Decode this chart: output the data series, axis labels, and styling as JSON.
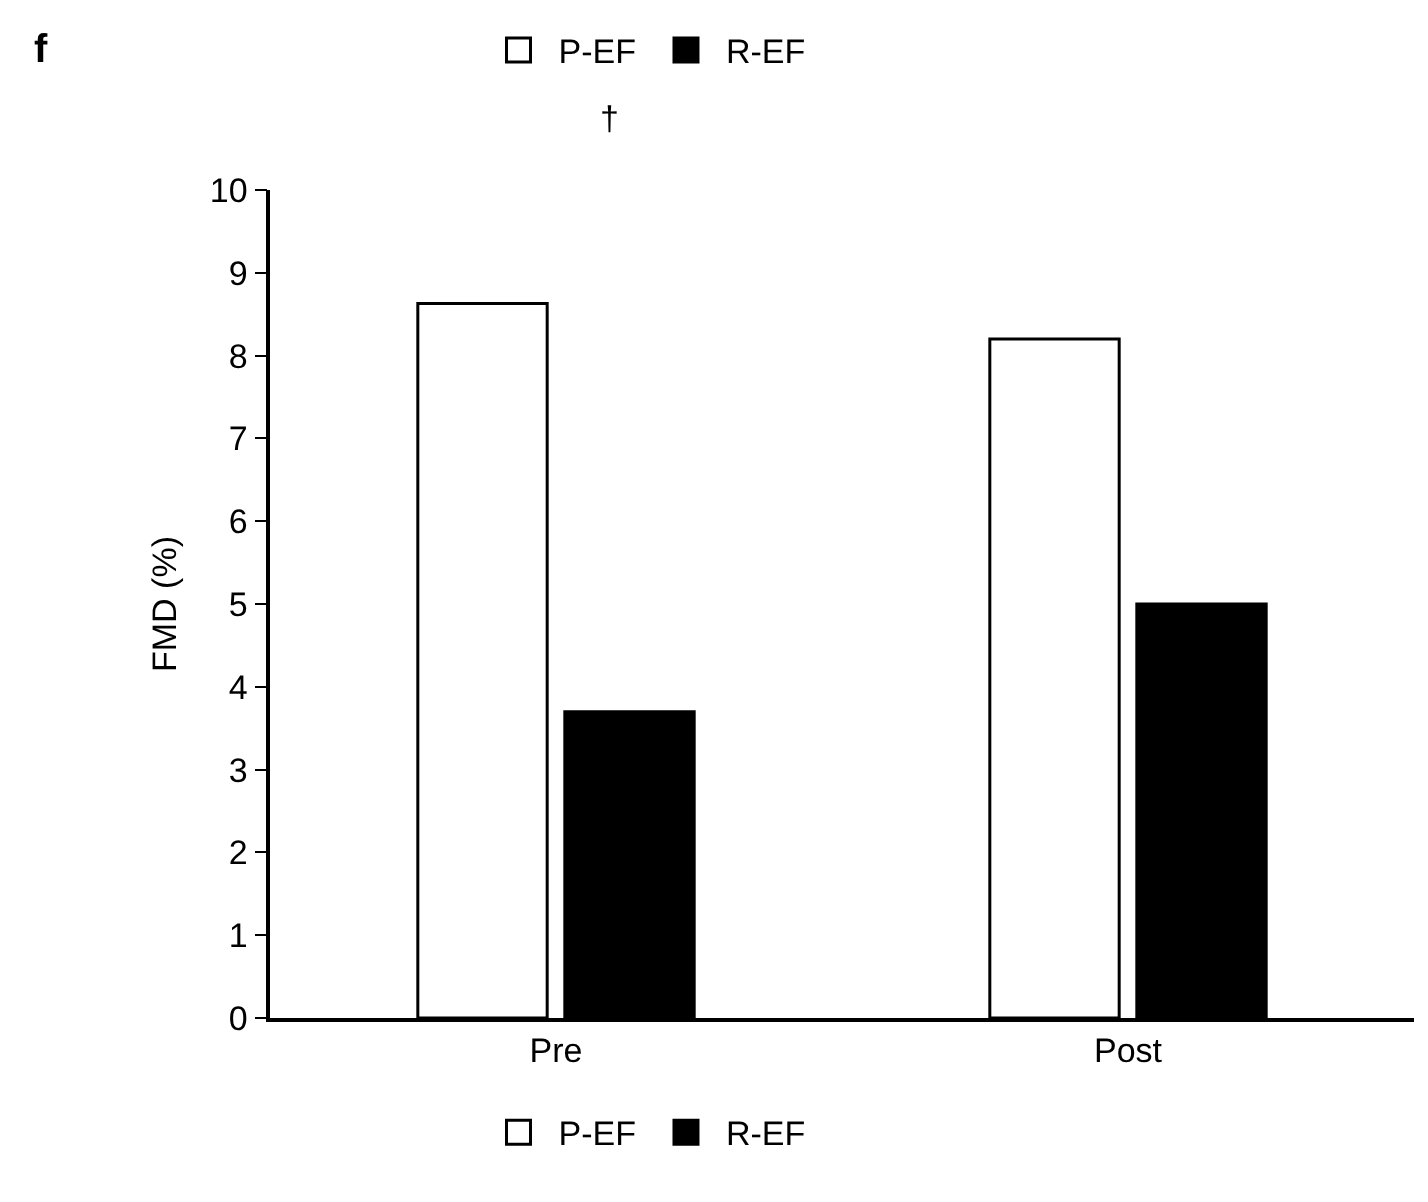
{
  "chart_data": {
    "type": "bar",
    "categories": [
      "Pre",
      "Post"
    ],
    "series": [
      {
        "name": "P-EF",
        "color": "#ffffff",
        "values": [
          8.63,
          8.2
        ]
      },
      {
        "name": "R-EF",
        "color": "#000000",
        "values": [
          3.7,
          5.0
        ]
      }
    ],
    "ylabel": "FMD (%)",
    "ylim": [
      0,
      10
    ],
    "yticks": [
      0,
      1,
      2,
      3,
      4,
      5,
      6,
      7,
      8,
      9,
      10
    ],
    "annotations": [
      "f",
      "†"
    ],
    "legend": "bottom",
    "grid": false
  }
}
